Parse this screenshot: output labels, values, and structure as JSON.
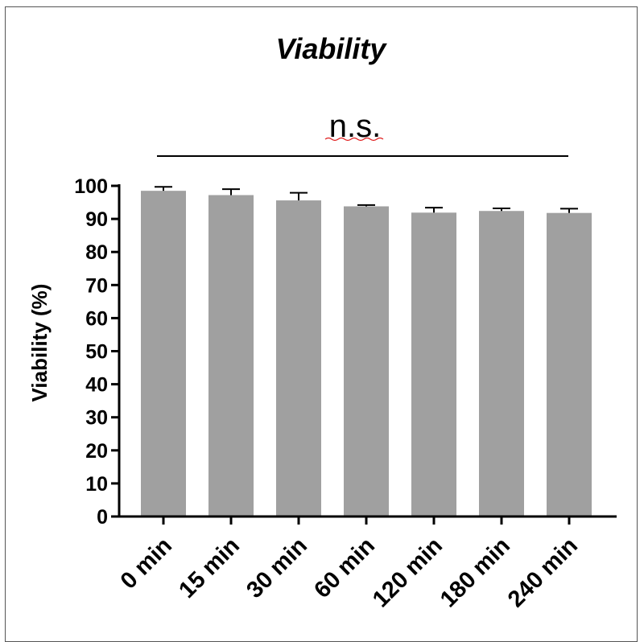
{
  "chart_data": {
    "type": "bar",
    "title": "Viability",
    "ylabel": "Viability  (%)",
    "xlabel": "",
    "categories": [
      "0 min",
      "15 min",
      "30 min",
      "60 min",
      "120 min",
      "180 min",
      "240 min"
    ],
    "values": [
      98.5,
      97.2,
      95.6,
      93.8,
      91.9,
      92.4,
      91.8
    ],
    "errors": [
      1.2,
      1.8,
      2.3,
      0.4,
      1.5,
      0.8,
      1.3
    ],
    "ylim": [
      0,
      100
    ],
    "yticks": [
      0,
      10,
      20,
      30,
      40,
      50,
      60,
      70,
      80,
      90,
      100
    ],
    "significance": "n.s.",
    "bar_color": "#a0a0a0",
    "grid": false
  }
}
